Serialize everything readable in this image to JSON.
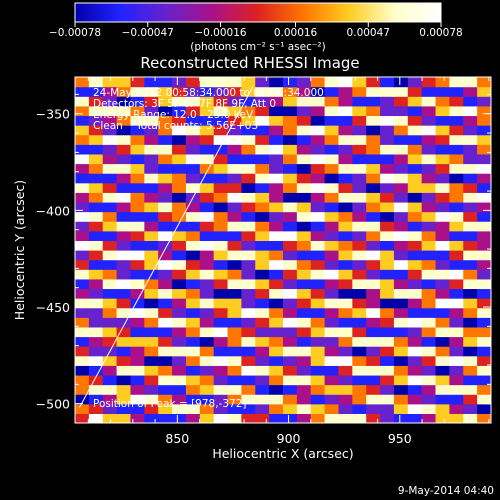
{
  "chart_data": {
    "type": "heatmap",
    "title": "Reconstructed RHESSI Image",
    "xlabel": "Heliocentric X (arcsec)",
    "ylabel": "Heliocentric Y (arcsec)",
    "xlim": [
      804,
      991
    ],
    "ylim": [
      -510,
      -331
    ],
    "x_ticks": [
      850,
      900,
      950
    ],
    "y_ticks": [
      -350,
      -400,
      -450,
      -500
    ],
    "x_tick_labels": [
      "850",
      "900",
      "950"
    ],
    "y_tick_labels": [
      "−350",
      "−400",
      "−450",
      "−500"
    ],
    "colorbar": {
      "range": [
        -0.00078,
        0.00078
      ],
      "ticks": [
        "−0.00078",
        "−0.00047",
        "−0.00016",
        "0.00016",
        "0.00047",
        "0.00078"
      ],
      "tick_values": [
        -0.00078,
        -0.00047,
        -0.00016,
        0.00016,
        0.00047,
        0.00078
      ],
      "label": "(photons cm⁻² s⁻¹ asec⁻²)",
      "colors": [
        "#0000aa",
        "#2222ff",
        "#6622cc",
        "#aa1188",
        "#dd2222",
        "#ff7700",
        "#ffcc22",
        "#ffffcc",
        "#ffffff"
      ]
    },
    "annotations": [
      "24-May-2012 00:58:34.000 to 01:04:34.000",
      "Detectors: 3F 5F 6F 7F 8F 9F, Att 0",
      "Energy Range: 12.0 - 25.0 keV",
      "Clean    Total counts: 5.56E+03"
    ],
    "peak_label": "Position of Peak = [978,-372]",
    "peak_position": [
      978,
      -372
    ],
    "limb_line": [
      [
        806,
        -502
      ],
      [
        884,
        -336
      ]
    ],
    "pattern": {
      "description": "diagonal fringe stripes",
      "nx": 30,
      "ny": 36,
      "slope_y_per_x": -0.27,
      "period_y": 14.5
    }
  },
  "footer": {
    "timestamp": "9-May-2014 04:40"
  }
}
